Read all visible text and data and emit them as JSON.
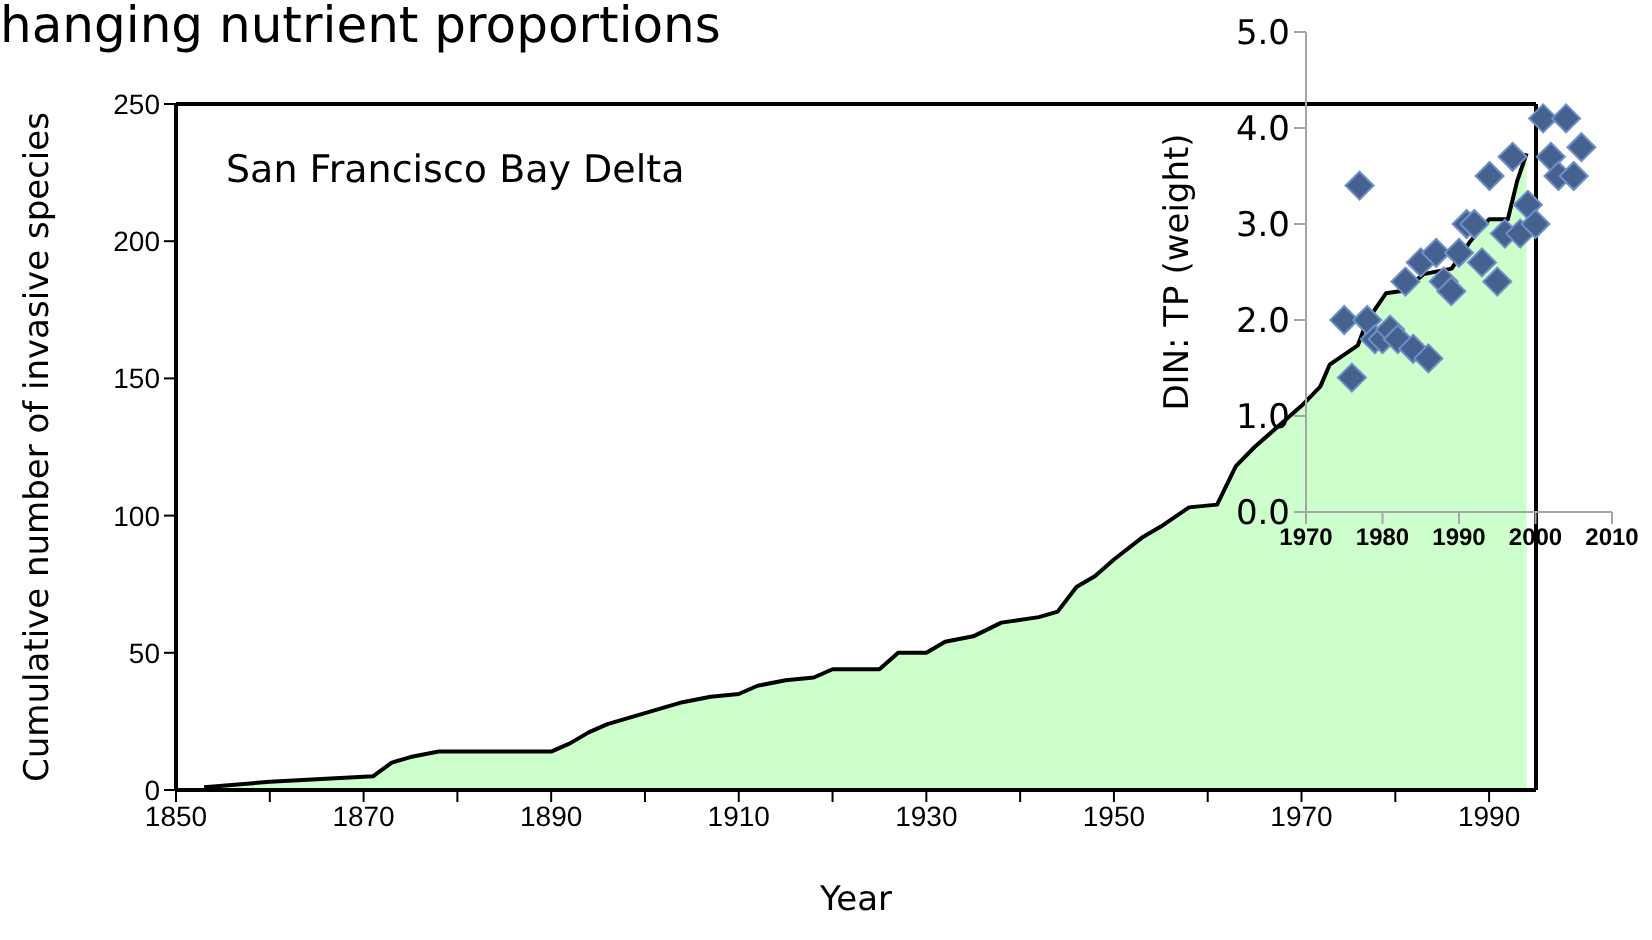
{
  "chart_data": [
    {
      "type": "area",
      "title": "hanging nutrient proportions",
      "xlabel": "Year",
      "ylabel": "Cumulative number of invasive species",
      "annotations": [
        "San Francisco Bay Delta"
      ],
      "xlim": [
        1850,
        1995
      ],
      "xticks": [
        1850,
        {
          "value": 1860,
          "label": null
        },
        1870,
        {
          "value": 1880,
          "label": null
        },
        1890,
        {
          "value": 1900,
          "label": null
        },
        1910,
        {
          "value": 1920,
          "label": null
        },
        1930,
        {
          "value": 1940,
          "label": null
        },
        1950,
        {
          "value": 1960,
          "label": null
        },
        1970,
        {
          "value": 1980,
          "label": null
        },
        1990
      ],
      "ylim": [
        0,
        250
      ],
      "yticks": [
        0,
        50,
        100,
        150,
        200,
        250
      ],
      "grid": false,
      "legend": false,
      "series": [
        {
          "color": "#ccffcc",
          "x": [
            1853,
            1860,
            1871,
            1873,
            1875,
            1878,
            1890,
            1892,
            1894,
            1896,
            1898,
            1901,
            1904,
            1907,
            1910,
            1912,
            1915,
            1918,
            1920,
            1925,
            1927,
            1930,
            1932,
            1935,
            1938,
            1942,
            1944,
            1946,
            1948,
            1950,
            1953,
            1955,
            1958,
            1961,
            1963,
            1965,
            1968,
            1970,
            1972,
            1973,
            1976,
            1977,
            1979,
            1981,
            1983,
            1986,
            1988,
            1990,
            1992,
            1993,
            1994
          ],
          "values": [
            1,
            3,
            5,
            10,
            12,
            14,
            14,
            17,
            21,
            24,
            26,
            29,
            32,
            34,
            35,
            38,
            40,
            41,
            44,
            44,
            50,
            50,
            54,
            56,
            61,
            63,
            65,
            74,
            78,
            84,
            92,
            96,
            103,
            104,
            118,
            125,
            134,
            140,
            147,
            155,
            162,
            171,
            181,
            182,
            188,
            190,
            200,
            208,
            208,
            222,
            232
          ]
        }
      ]
    },
    {
      "type": "scatter",
      "ylabel": "DIN: TP (weight)",
      "xlim": [
        1970,
        2010
      ],
      "xticks": [
        1970,
        1980,
        1990,
        2000,
        2010
      ],
      "ylim": [
        0,
        5
      ],
      "yticks": [
        {
          "value": 0,
          "label": "0.0"
        },
        {
          "value": 1,
          "label": "1.0"
        },
        {
          "value": 2,
          "label": "2.0"
        },
        {
          "value": 3,
          "label": "3.0"
        },
        {
          "value": 4,
          "label": "4.0"
        },
        {
          "value": 5,
          "label": "5.0"
        }
      ],
      "grid": false,
      "legend": false,
      "marker": "diamond",
      "series": [
        {
          "color": "#44618f",
          "x": [
            1975,
            1976,
            1977,
            1978,
            1979,
            1980,
            1981,
            1982,
            1983,
            1984,
            1985,
            1986,
            1987,
            1988,
            1989,
            1990,
            1991,
            1992,
            1993,
            1994,
            1995,
            1996,
            1997,
            1998,
            1999,
            2000,
            2001,
            2002,
            2003,
            2004,
            2005,
            2006
          ],
          "values": [
            2.0,
            1.4,
            3.4,
            2.0,
            1.8,
            1.8,
            1.9,
            1.8,
            2.4,
            1.7,
            2.6,
            1.6,
            2.7,
            2.4,
            2.3,
            2.7,
            3.0,
            3.0,
            2.6,
            3.5,
            2.4,
            2.9,
            3.7,
            2.9,
            3.2,
            3.0,
            4.1,
            3.7,
            3.5,
            4.1,
            3.5,
            3.8
          ]
        }
      ]
    }
  ]
}
